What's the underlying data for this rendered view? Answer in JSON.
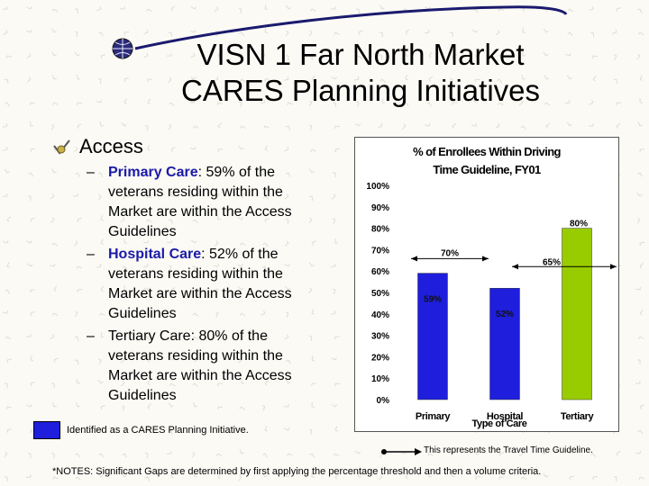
{
  "slide": {
    "title_line1": "VISN 1 Far North Market",
    "title_line2": "CARES Planning Initiatives",
    "bullet_heading": "Access",
    "sub_bullets": [
      {
        "dash": "–",
        "label": "Primary Care",
        "text": ": 59% of the veterans residing within the Market are within the Access Guidelines",
        "highlight": true
      },
      {
        "dash": "–",
        "label": "Hospital Care",
        "text": ": 52% of the veterans residing within the Market are within the Access Guidelines",
        "highlight": true
      },
      {
        "dash": "–",
        "label": "",
        "text": "Tertiary Care: 80% of the veterans residing within the Market are within the Access Guidelines",
        "highlight": false
      }
    ],
    "legend_text": "Identified as a CARES Planning Initiative.",
    "arrow_legend_text": "This represents the Travel Time Guideline.",
    "notes": "*NOTES:  Significant Gaps are determined by first applying the percentage threshold and then a volume criteria."
  },
  "colors": {
    "initiative_bar": "#1e1edc",
    "normal_bar": "#99cc00",
    "title_line": "#1a1a6e"
  },
  "icons": {
    "globe": "globe-icon",
    "bullet": "checkmark-bullet-icon"
  },
  "chart_data": {
    "type": "bar",
    "title_line1": "% of Enrollees Within Driving",
    "title_line2": "Time Guideline, FY01",
    "xlabel": "Type of Care",
    "ylabel": "",
    "ylim": [
      0,
      100
    ],
    "yticks": [
      0,
      10,
      20,
      30,
      40,
      50,
      60,
      70,
      80,
      90,
      100
    ],
    "ytick_labels": [
      "0%",
      "10%",
      "20%",
      "30%",
      "40%",
      "50%",
      "60%",
      "70%",
      "80%",
      "90%",
      "100%"
    ],
    "categories": [
      "Primary",
      "Hospital",
      "Tertiary"
    ],
    "values": [
      59,
      52,
      80
    ],
    "value_labels": [
      "59%",
      "52%",
      "80%"
    ],
    "bar_colors": [
      "#1e1edc",
      "#1e1edc",
      "#99cc00"
    ],
    "guidelines": [
      {
        "label": "70%",
        "value": 70,
        "span": [
          "Primary",
          "Hospital"
        ]
      },
      {
        "label": "65%",
        "value": 65,
        "span": [
          "Hospital",
          "Tertiary"
        ]
      }
    ],
    "grid": false,
    "legend": "none"
  }
}
